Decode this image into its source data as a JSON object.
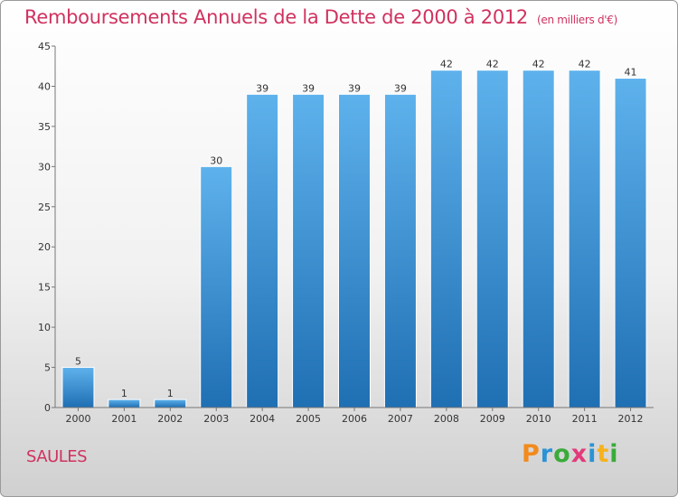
{
  "title": "Remboursements Annuels de la Dette de 2000 à 2012",
  "unit_note": "(en milliers d'€)",
  "commune": "SAULES",
  "brand": {
    "letters": [
      "P",
      "r",
      "o",
      "x",
      "i",
      "t",
      "i"
    ],
    "colors": [
      "#f28a1c",
      "#2b93d6",
      "#3aab3a",
      "#e23b7a",
      "#2b93d6",
      "#f6b21b",
      "#3aab3a"
    ]
  },
  "colors": {
    "bar_light": "#5eb2ec",
    "bar_dark": "#1f6fb3",
    "title": "#d0325f",
    "axis": "#777777"
  },
  "chart_data": {
    "type": "bar",
    "title": "Remboursements Annuels de la Dette de 2000 à 2012",
    "subtitle": "(en milliers d'€)",
    "xlabel": "",
    "ylabel": "",
    "categories": [
      "2000",
      "2001",
      "2002",
      "2003",
      "2004",
      "2005",
      "2006",
      "2007",
      "2008",
      "2009",
      "2010",
      "2011",
      "2012"
    ],
    "values": [
      5,
      1,
      1,
      30,
      39,
      39,
      39,
      39,
      42,
      42,
      42,
      42,
      41
    ],
    "ylim": [
      0,
      45
    ],
    "yticks": [
      0,
      5,
      10,
      15,
      20,
      25,
      30,
      35,
      40,
      45
    ],
    "grid": false,
    "legend": "none"
  }
}
